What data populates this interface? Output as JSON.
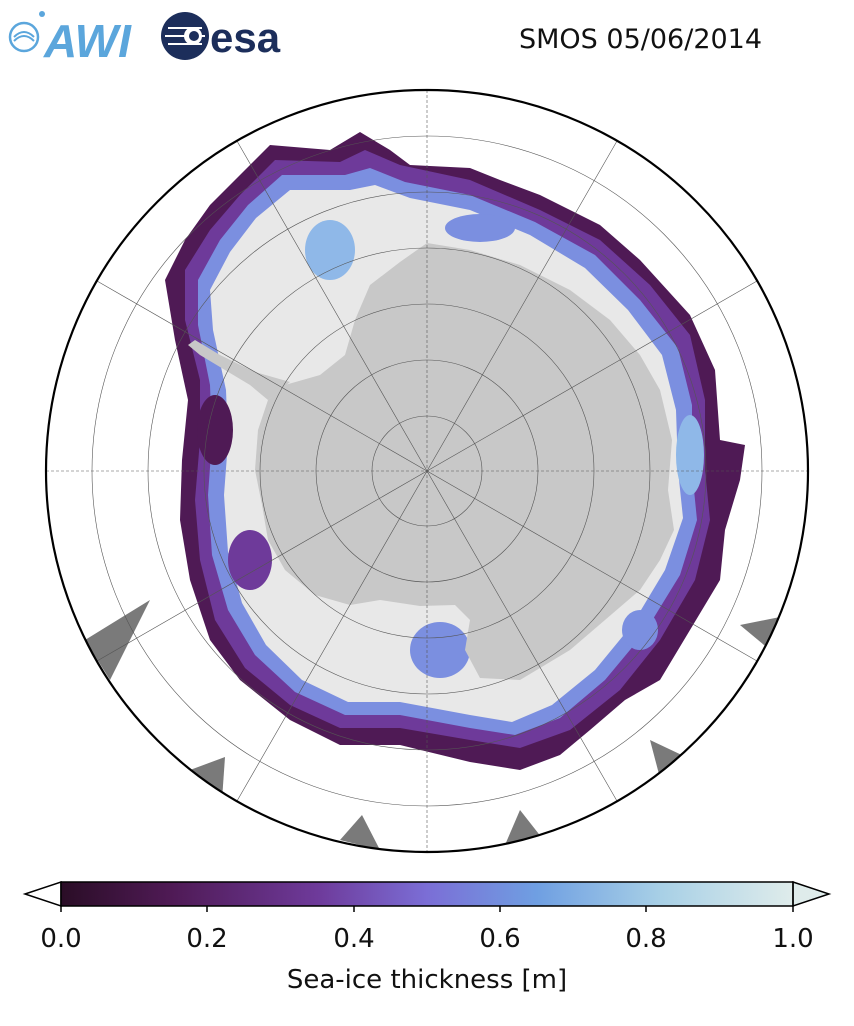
{
  "header": {
    "logo_awi": "AWI",
    "logo_esa": "esa",
    "title": "SMOS 05/06/2014"
  },
  "colors": {
    "awi_blue": "#5ba6dc",
    "esa_navy": "#1c2e5b",
    "land": "#c8c8c8",
    "thick_ice": "#e8e8e8",
    "ocean": "#ffffff",
    "land_mask_grey": "#7a7a7a",
    "colormap": [
      "#2a0d26",
      "#4f1a55",
      "#6e3a9a",
      "#7b6ed6",
      "#6f9fe2",
      "#a8d0e6",
      "#dfeceb"
    ]
  },
  "colorbar": {
    "min": 0.0,
    "max": 1.0,
    "extend": "both",
    "ticks": [
      "0.0",
      "0.2",
      "0.4",
      "0.6",
      "0.8",
      "1.0"
    ],
    "label": "Sea-ice thickness [m]"
  },
  "map": {
    "projection": "south-polar-stereographic",
    "graticule": true
  }
}
